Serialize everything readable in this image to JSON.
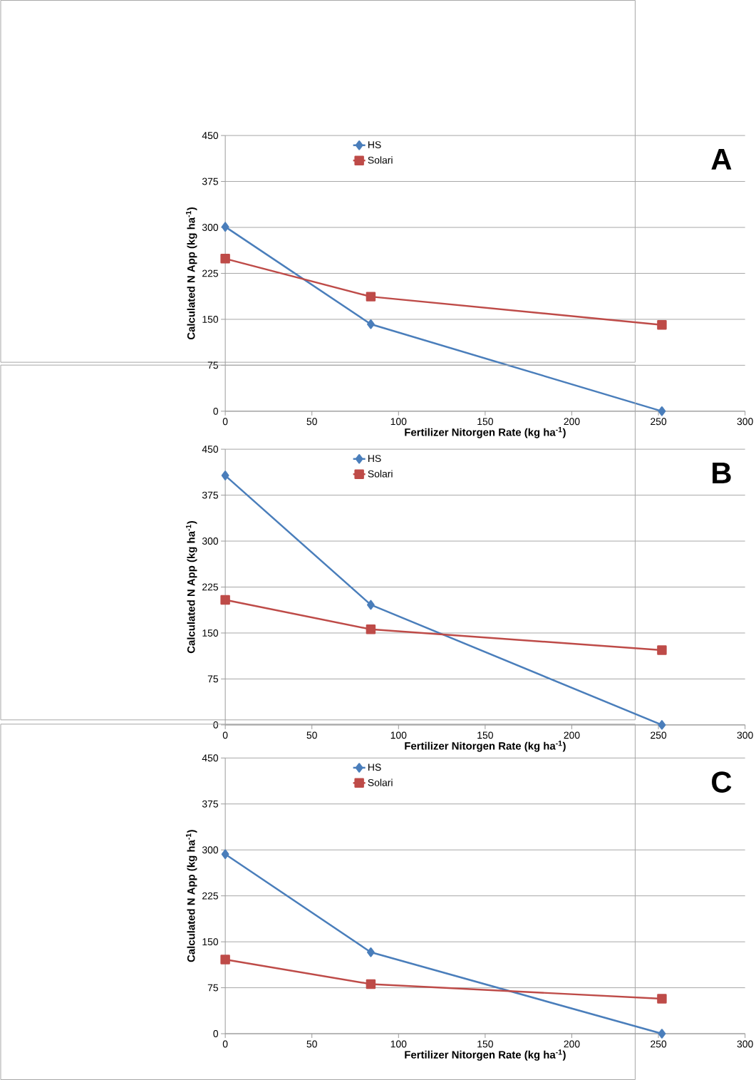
{
  "chart_data": [
    {
      "type": "line",
      "xlabel": "Fertilizer Nitorgen Rate (kg ha$^{-1}$)",
      "ylabel": "Calculated N App (kg ha$^{-1}$)",
      "annotations": [
        "A"
      ],
      "x": [
        0,
        84,
        252
      ],
      "xlim": [
        0,
        300
      ],
      "xticks": [
        0,
        50,
        100,
        150,
        200,
        250,
        300
      ],
      "ylim": [
        0,
        450
      ],
      "yticks": [
        0,
        75,
        150,
        225,
        300,
        375,
        450
      ],
      "grid": "y",
      "legend": "top",
      "line_style": "solid",
      "series": [
        {
          "name": "HS",
          "color": "#4a7ebb",
          "marker": "diamond",
          "values": [
            301,
            142,
            0
          ]
        },
        {
          "name": "Solari",
          "color": "#be4b48",
          "marker": "square",
          "values": [
            249,
            187,
            141
          ]
        }
      ]
    },
    {
      "type": "line",
      "xlabel": "Fertilizer Nitorgen Rate (kg ha$^{-1}$)",
      "ylabel": "Calculated N App (kg ha$^{-1}$)",
      "annotations": [
        "B"
      ],
      "x": [
        0,
        84,
        252
      ],
      "xlim": [
        0,
        300
      ],
      "xticks": [
        0,
        50,
        100,
        150,
        200,
        250,
        300
      ],
      "ylim": [
        0,
        450
      ],
      "yticks": [
        0,
        75,
        150,
        225,
        300,
        375,
        450
      ],
      "grid": "y",
      "legend": "top",
      "line_style": "solid",
      "series": [
        {
          "name": "HS",
          "color": "#4a7ebb",
          "marker": "diamond",
          "values": [
            407,
            196,
            0
          ]
        },
        {
          "name": "Solari",
          "color": "#be4b48",
          "marker": "square",
          "values": [
            204,
            156,
            122
          ]
        }
      ]
    },
    {
      "type": "line",
      "xlabel": "Fertilizer Nitorgen Rate (kg ha$^{-1}$)",
      "ylabel": "Calculated N App (kg ha$^{-1}$)",
      "annotations": [
        "C"
      ],
      "x": [
        0,
        84,
        252
      ],
      "xlim": [
        0,
        300
      ],
      "xticks": [
        0,
        50,
        100,
        150,
        200,
        250,
        300
      ],
      "ylim": [
        0,
        450
      ],
      "yticks": [
        0,
        75,
        150,
        225,
        300,
        375,
        450
      ],
      "grid": "y",
      "legend": "top",
      "line_style": "solid",
      "series": [
        {
          "name": "HS",
          "color": "#4a7ebb",
          "marker": "diamond",
          "values": [
            293,
            133,
            0
          ]
        },
        {
          "name": "Solari",
          "color": "#be4b48",
          "marker": "square",
          "values": [
            121,
            81,
            57
          ]
        }
      ]
    }
  ]
}
